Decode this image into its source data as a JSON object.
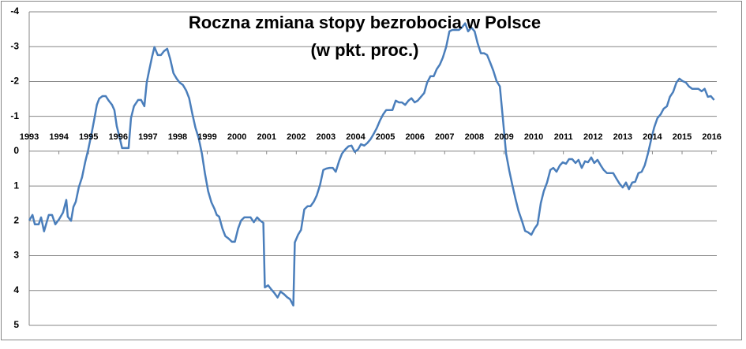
{
  "chart_data": {
    "type": "line",
    "title": "Roczna zmiana stopy bezrobocia w Polsce",
    "subtitle": "(w pkt. proc.)",
    "x": [
      1993.0,
      1993.11,
      1993.19,
      1993.32,
      1993.4,
      1993.5,
      1993.66,
      1993.77,
      1993.88,
      1994.01,
      1994.14,
      1994.25,
      1994.3,
      1994.41,
      1994.49,
      1994.57,
      1994.67,
      1994.78,
      1994.89,
      1994.99,
      1995.1,
      1995.2,
      1995.28,
      1995.36,
      1995.47,
      1995.58,
      1995.68,
      1995.79,
      1995.87,
      1995.95,
      1996.05,
      1996.13,
      1996.27,
      1996.35,
      1996.43,
      1996.53,
      1996.67,
      1996.77,
      1996.88,
      1996.96,
      1997.04,
      1997.14,
      1997.22,
      1997.33,
      1997.44,
      1997.54,
      1997.65,
      1997.75,
      1997.86,
      1997.97,
      1998.07,
      1998.18,
      1998.29,
      1998.39,
      1998.5,
      1998.6,
      1998.71,
      1998.82,
      1998.92,
      1999.03,
      1999.14,
      1999.24,
      1999.32,
      1999.4,
      1999.51,
      1999.61,
      1999.72,
      1999.83,
      1999.93,
      2000.04,
      2000.14,
      2000.25,
      2000.36,
      2000.46,
      2000.57,
      2000.68,
      2000.78,
      2000.89,
      2000.94,
      2001.05,
      2001.15,
      2001.26,
      2001.37,
      2001.47,
      2001.58,
      2001.69,
      2001.79,
      2001.9,
      2001.95,
      2002.06,
      2002.16,
      2002.27,
      2002.38,
      2002.48,
      2002.59,
      2002.69,
      2002.8,
      2002.91,
      2003.01,
      2003.12,
      2003.23,
      2003.33,
      2003.44,
      2003.54,
      2003.65,
      2003.76,
      2003.86,
      2003.97,
      2004.08,
      2004.18,
      2004.29,
      2004.39,
      2004.5,
      2004.61,
      2004.71,
      2004.82,
      2004.93,
      2005.03,
      2005.14,
      2005.24,
      2005.35,
      2005.46,
      2005.56,
      2005.67,
      2005.78,
      2005.88,
      2005.99,
      2006.09,
      2006.2,
      2006.31,
      2006.41,
      2006.52,
      2006.63,
      2006.73,
      2006.84,
      2006.94,
      2007.05,
      2007.16,
      2007.26,
      2007.37,
      2007.48,
      2007.58,
      2007.69,
      2007.79,
      2007.9,
      2008.01,
      2008.11,
      2008.22,
      2008.33,
      2008.43,
      2008.54,
      2008.64,
      2008.75,
      2008.86,
      2008.96,
      2009.07,
      2009.18,
      2009.28,
      2009.39,
      2009.49,
      2009.6,
      2009.71,
      2009.81,
      2009.92,
      2010.03,
      2010.13,
      2010.24,
      2010.34,
      2010.45,
      2010.56,
      2010.66,
      2010.77,
      2010.88,
      2010.98,
      2011.09,
      2011.19,
      2011.3,
      2011.41,
      2011.51,
      2011.62,
      2011.73,
      2011.83,
      2011.94,
      2012.04,
      2012.15,
      2012.26,
      2012.36,
      2012.47,
      2012.58,
      2012.68,
      2012.79,
      2012.89,
      2013.0,
      2013.11,
      2013.21,
      2013.32,
      2013.42,
      2013.53,
      2013.64,
      2013.74,
      2013.85,
      2013.96,
      2014.06,
      2014.17,
      2014.28,
      2014.38,
      2014.49,
      2014.59,
      2014.7,
      2014.81,
      2014.91,
      2015.02,
      2015.13,
      2015.23,
      2015.34,
      2015.45,
      2015.55,
      2015.66,
      2015.76,
      2015.87,
      2015.97,
      2016.08
    ],
    "series": [
      {
        "color": "#4a7ebb",
        "values": [
          1.99,
          1.83,
          2.1,
          2.1,
          1.9,
          2.3,
          1.83,
          1.83,
          2.1,
          1.95,
          1.76,
          1.4,
          1.88,
          2.0,
          1.6,
          1.45,
          1.04,
          0.75,
          0.3,
          -0.05,
          -0.5,
          -0.95,
          -1.33,
          -1.51,
          -1.58,
          -1.58,
          -1.45,
          -1.33,
          -1.18,
          -0.72,
          -0.38,
          -0.09,
          -0.09,
          -0.09,
          -0.95,
          -1.29,
          -1.47,
          -1.47,
          -1.29,
          -1.97,
          -2.31,
          -2.71,
          -2.99,
          -2.76,
          -2.76,
          -2.87,
          -2.94,
          -2.65,
          -2.24,
          -2.08,
          -1.97,
          -1.9,
          -1.74,
          -1.52,
          -1.06,
          -0.68,
          -0.38,
          0.07,
          0.63,
          1.15,
          1.47,
          1.65,
          1.83,
          1.88,
          2.22,
          2.44,
          2.51,
          2.6,
          2.6,
          2.22,
          1.99,
          1.9,
          1.9,
          1.9,
          2.04,
          1.9,
          1.99,
          2.06,
          3.91,
          3.85,
          3.96,
          4.07,
          4.2,
          4.03,
          4.1,
          4.19,
          4.25,
          4.43,
          2.62,
          2.4,
          2.26,
          1.67,
          1.58,
          1.58,
          1.45,
          1.27,
          0.97,
          0.54,
          0.5,
          0.48,
          0.48,
          0.59,
          0.29,
          0.07,
          -0.05,
          -0.14,
          -0.16,
          0.02,
          -0.05,
          -0.2,
          -0.16,
          -0.23,
          -0.34,
          -0.5,
          -0.66,
          -0.88,
          -1.06,
          -1.18,
          -1.18,
          -1.18,
          -1.45,
          -1.4,
          -1.4,
          -1.33,
          -1.45,
          -1.52,
          -1.4,
          -1.45,
          -1.56,
          -1.67,
          -1.97,
          -2.15,
          -2.15,
          -2.35,
          -2.49,
          -2.69,
          -2.99,
          -3.44,
          -3.48,
          -3.48,
          -3.48,
          -3.55,
          -3.67,
          -3.44,
          -3.55,
          -3.44,
          -3.1,
          -2.81,
          -2.81,
          -2.76,
          -2.53,
          -2.31,
          -2.01,
          -1.86,
          -0.95,
          0.07,
          0.57,
          0.97,
          1.38,
          1.72,
          1.99,
          2.29,
          2.33,
          2.4,
          2.22,
          2.1,
          1.49,
          1.15,
          0.9,
          0.54,
          0.48,
          0.59,
          0.41,
          0.32,
          0.36,
          0.23,
          0.23,
          0.34,
          0.25,
          0.48,
          0.29,
          0.32,
          0.18,
          0.34,
          0.25,
          0.41,
          0.54,
          0.63,
          0.63,
          0.63,
          0.79,
          0.93,
          1.04,
          0.9,
          1.09,
          0.9,
          0.88,
          0.63,
          0.59,
          0.41,
          0.07,
          -0.34,
          -0.68,
          -0.95,
          -1.06,
          -1.22,
          -1.29,
          -1.56,
          -1.7,
          -1.97,
          -2.08,
          -2.01,
          -1.97,
          -1.86,
          -1.79,
          -1.79,
          -1.79,
          -1.72,
          -1.79,
          -1.56,
          -1.58,
          -1.47
        ]
      }
    ],
    "xlim": [
      1993,
      2016.17
    ],
    "xticks": [
      1993,
      1994,
      1995,
      1996,
      1997,
      1998,
      1999,
      2000,
      2001,
      2002,
      2003,
      2004,
      2005,
      2006,
      2007,
      2008,
      2009,
      2010,
      2011,
      2012,
      2013,
      2014,
      2015,
      2016
    ],
    "ylim": [
      -4,
      5
    ],
    "yticks": [
      -4,
      -3,
      -2,
      -1,
      0,
      1,
      2,
      3,
      4,
      5
    ],
    "y_inverted": true,
    "grid": true
  }
}
